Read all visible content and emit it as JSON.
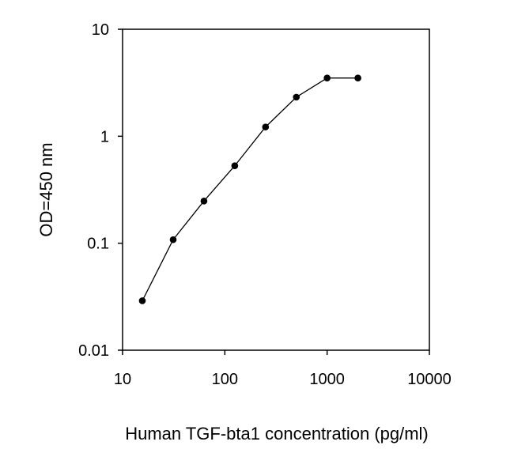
{
  "chart_data": {
    "type": "line",
    "title": "",
    "xlabel": "Human TGF-bta1 concentration (pg/ml)",
    "ylabel": "OD=450 nm",
    "x_scale": "log",
    "y_scale": "log",
    "xlim": [
      10,
      10000
    ],
    "ylim": [
      0.01,
      10
    ],
    "x_ticks": [
      10,
      100,
      1000,
      10000
    ],
    "x_tick_labels": [
      "10",
      "100",
      "1000",
      "10000"
    ],
    "y_ticks": [
      0.01,
      0.1,
      1,
      10
    ],
    "y_tick_labels": [
      "0.01",
      "0.1",
      "1",
      "10"
    ],
    "grid": false,
    "legend": false,
    "series": [
      {
        "x": [
          15.6,
          31.25,
          62.5,
          125,
          250,
          500,
          1000,
          2000
        ],
        "y": [
          0.029,
          0.108,
          0.248,
          0.53,
          1.22,
          2.32,
          3.5,
          3.5
        ]
      }
    ],
    "colors": {
      "line": "#000000",
      "marker": "#000000",
      "axis": "#000000"
    }
  }
}
